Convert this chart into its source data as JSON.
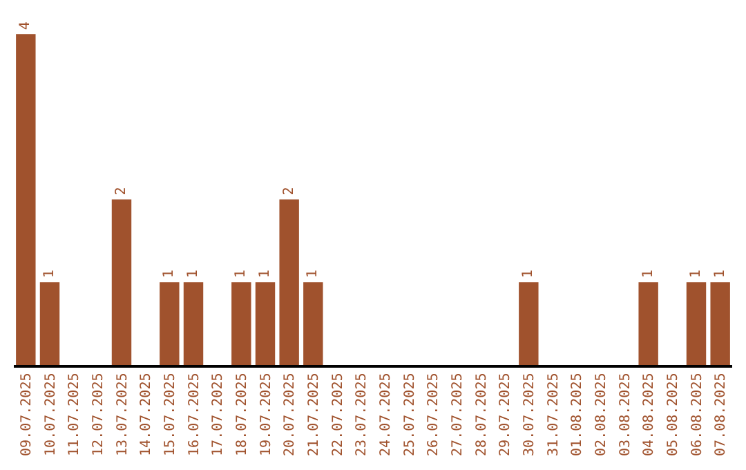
{
  "chart_data": {
    "type": "bar",
    "categories": [
      "09.07.2025",
      "10.07.2025",
      "11.07.2025",
      "12.07.2025",
      "13.07.2025",
      "14.07.2025",
      "15.07.2025",
      "16.07.2025",
      "17.07.2025",
      "18.07.2025",
      "19.07.2025",
      "20.07.2025",
      "21.07.2025",
      "22.07.2025",
      "23.07.2025",
      "24.07.2025",
      "25.07.2025",
      "26.07.2025",
      "27.07.2025",
      "28.07.2025",
      "29.07.2025",
      "30.07.2025",
      "31.07.2025",
      "01.08.2025",
      "02.08.2025",
      "03.08.2025",
      "04.08.2025",
      "05.08.2025",
      "06.08.2025",
      "07.08.2025"
    ],
    "values": [
      4,
      1,
      0,
      0,
      2,
      0,
      1,
      1,
      0,
      1,
      1,
      2,
      1,
      0,
      0,
      0,
      0,
      0,
      0,
      0,
      0,
      1,
      0,
      0,
      0,
      0,
      1,
      0,
      1,
      1
    ],
    "value_labels": [
      "4",
      "1",
      null,
      null,
      "2",
      null,
      "1",
      "1",
      null,
      "1",
      "1",
      "2",
      "1",
      null,
      null,
      null,
      null,
      null,
      null,
      null,
      null,
      "1",
      null,
      null,
      null,
      null,
      "1",
      null,
      "1",
      "1"
    ],
    "color": "#a0522d"
  }
}
